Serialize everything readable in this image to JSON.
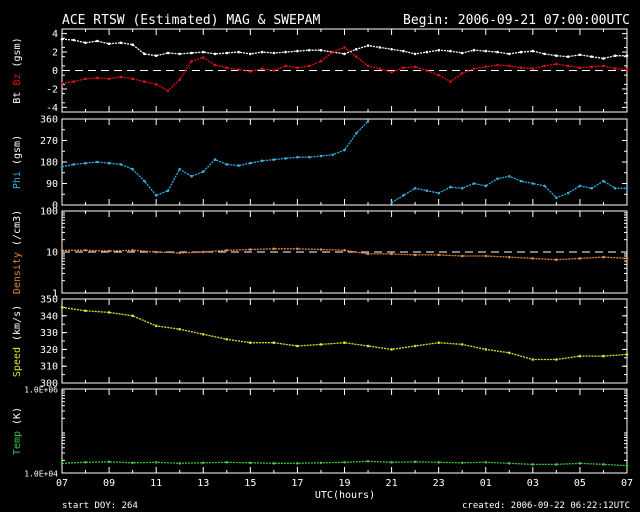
{
  "header": {
    "title": "ACE RTSW (Estimated) MAG & SWEPAM",
    "begin": "Begin: 2006-09-21 07:00:00UTC"
  },
  "footer": {
    "start_doy": "start DOY: 264",
    "created": "created: 2006-09-22 06:22:12UTC"
  },
  "colors": {
    "background": "#000000",
    "axes": "#ffffff",
    "bt": "#ffffff",
    "bz": "#e01010",
    "phi": "#30b0e0",
    "density": "#e08840",
    "speed": "#e0e030",
    "temp": "#40c040"
  },
  "chart_data": {
    "type": "line",
    "xlabel": "UTC(hours)",
    "xlim_hours": [
      0,
      24
    ],
    "x_tick_labels": [
      "07",
      "09",
      "11",
      "13",
      "15",
      "17",
      "19",
      "21",
      "23",
      "01",
      "03",
      "05",
      "07"
    ],
    "panels": [
      {
        "id": "mag",
        "ylabel_parts": [
          {
            "text": "Bt",
            "color_key": "bt"
          },
          {
            "text": " Bz",
            "color_key": "bz"
          },
          {
            "text": " (gsm)",
            "color_key": "axes"
          }
        ],
        "scale": "linear",
        "ylim": [
          -4.5,
          4.5
        ],
        "y_ticks": [
          4,
          2,
          0,
          -2,
          -4
        ],
        "y_tick_labels": [
          "4",
          "2",
          "0",
          "-2",
          "-4"
        ],
        "dashed_ref": 0,
        "series": [
          {
            "name": "Bt",
            "color_key": "bt",
            "x": [
              0,
              0.5,
              1,
              1.5,
              2,
              2.5,
              3,
              3.5,
              4,
              4.5,
              5,
              5.5,
              6,
              6.5,
              7,
              7.5,
              8,
              8.5,
              9,
              9.5,
              10,
              10.5,
              11,
              11.5,
              12,
              12.5,
              13,
              13.5,
              14,
              14.5,
              15,
              15.5,
              16,
              16.5,
              17,
              17.5,
              18,
              18.5,
              19,
              19.5,
              20,
              20.5,
              21,
              21.5,
              22,
              22.5,
              23,
              23.5,
              24
            ],
            "y": [
              3.4,
              3.3,
              3.0,
              3.2,
              2.9,
              3.0,
              2.8,
              1.8,
              1.6,
              1.9,
              1.8,
              1.9,
              2.0,
              1.8,
              1.9,
              2.0,
              1.8,
              2.0,
              1.9,
              2.0,
              2.1,
              2.2,
              2.2,
              2.0,
              1.8,
              2.3,
              2.7,
              2.5,
              2.3,
              2.1,
              1.8,
              2.0,
              2.2,
              2.1,
              1.9,
              2.2,
              2.1,
              2.0,
              1.8,
              2.0,
              2.1,
              1.8,
              1.6,
              1.5,
              1.7,
              1.5,
              1.3,
              1.6,
              1.6
            ]
          },
          {
            "name": "Bz",
            "color_key": "bz",
            "x": [
              0,
              0.5,
              1,
              1.5,
              2,
              2.5,
              3,
              3.5,
              4,
              4.5,
              5,
              5.5,
              6,
              6.5,
              7,
              7.5,
              8,
              8.5,
              9,
              9.5,
              10,
              10.5,
              11,
              11.5,
              12,
              12.5,
              13,
              13.5,
              14,
              14.5,
              15,
              15.5,
              16,
              16.5,
              17,
              17.5,
              18,
              18.5,
              19,
              19.5,
              20,
              20.5,
              21,
              21.5,
              22,
              22.5,
              23,
              23.5,
              24
            ],
            "y": [
              -1.4,
              -1.2,
              -0.9,
              -0.8,
              -0.9,
              -0.7,
              -0.9,
              -1.2,
              -1.5,
              -2.2,
              -1.0,
              1.0,
              1.4,
              0.6,
              0.3,
              0.1,
              -0.1,
              0.2,
              0.0,
              0.5,
              0.3,
              0.5,
              1.0,
              2.0,
              2.5,
              1.5,
              0.5,
              0.2,
              -0.2,
              0.3,
              0.4,
              0.0,
              -0.5,
              -1.2,
              -0.3,
              0.2,
              0.4,
              0.6,
              0.5,
              0.3,
              0.2,
              0.5,
              0.7,
              0.5,
              0.3,
              0.4,
              0.5,
              0.2,
              0.1
            ]
          }
        ]
      },
      {
        "id": "phi",
        "ylabel_parts": [
          {
            "text": "Phi",
            "color_key": "phi"
          },
          {
            "text": " (gsm)",
            "color_key": "axes"
          }
        ],
        "scale": "linear",
        "ylim": [
          0,
          360
        ],
        "y_ticks": [
          360,
          270,
          180,
          90,
          0
        ],
        "y_tick_labels": [
          "360",
          "270",
          "180",
          "90",
          "0"
        ],
        "series": [
          {
            "name": "Phi",
            "color_key": "phi",
            "x": [
              0,
              0.5,
              1,
              1.5,
              2,
              2.5,
              3,
              3.5,
              4,
              4.5,
              5,
              5.5,
              6,
              6.5,
              7,
              7.5,
              8,
              8.5,
              9,
              9.5,
              10,
              10.5,
              11,
              11.5,
              12,
              12.5,
              13,
              13.5,
              14,
              14.5,
              15,
              15.5,
              16,
              16.5,
              17,
              17.5,
              18,
              18.5,
              19,
              19.5,
              20,
              20.5,
              21,
              21.5,
              22,
              22.5,
              23,
              23.5,
              24
            ],
            "y": [
              160,
              170,
              175,
              180,
              175,
              170,
              150,
              100,
              40,
              60,
              150,
              120,
              140,
              190,
              170,
              165,
              175,
              185,
              190,
              195,
              200,
              200,
              205,
              210,
              230,
              300,
              350,
              null,
              10,
              40,
              70,
              60,
              50,
              75,
              70,
              90,
              80,
              110,
              120,
              100,
              90,
              80,
              30,
              50,
              80,
              70,
              100,
              70,
              70
            ]
          }
        ]
      },
      {
        "id": "density",
        "ylabel_parts": [
          {
            "text": "Density",
            "color_key": "density"
          },
          {
            "text": " (/cm3)",
            "color_key": "axes"
          }
        ],
        "scale": "log",
        "ylim": [
          1,
          100
        ],
        "y_ticks": [
          100,
          10,
          1
        ],
        "y_tick_labels": [
          "100",
          "10",
          "1"
        ],
        "dashed_ref": 10,
        "series": [
          {
            "name": "Density",
            "color_key": "density",
            "x": [
              0,
              1,
              2,
              3,
              4,
              5,
              6,
              7,
              8,
              9,
              10,
              11,
              12,
              13,
              14,
              15,
              16,
              17,
              18,
              19,
              20,
              21,
              22,
              23,
              24
            ],
            "y": [
              11,
              11,
              10.5,
              11,
              10,
              9.5,
              10,
              11,
              11.5,
              12,
              12,
              11.5,
              11,
              9,
              9,
              8.5,
              8.5,
              8,
              8,
              7.5,
              7,
              6.5,
              7,
              7.5,
              7
            ]
          }
        ]
      },
      {
        "id": "speed",
        "ylabel_parts": [
          {
            "text": "Speed",
            "color_key": "speed"
          },
          {
            "text": " (km/s)",
            "color_key": "axes"
          }
        ],
        "scale": "linear",
        "ylim": [
          300,
          350
        ],
        "y_ticks": [
          350,
          340,
          330,
          320,
          310,
          300
        ],
        "y_tick_labels": [
          "350",
          "340",
          "330",
          "320",
          "310",
          "300"
        ],
        "series": [
          {
            "name": "Speed",
            "color_key": "speed",
            "x": [
              0,
              1,
              2,
              3,
              4,
              5,
              6,
              7,
              8,
              9,
              10,
              11,
              12,
              13,
              14,
              15,
              16,
              17,
              18,
              19,
              20,
              21,
              22,
              23,
              24
            ],
            "y": [
              345,
              343,
              342,
              340,
              334,
              332,
              329,
              326,
              324,
              324,
              322,
              323,
              324,
              322,
              320,
              322,
              324,
              323,
              320,
              318,
              314,
              314,
              316,
              316,
              317
            ]
          }
        ]
      },
      {
        "id": "temp",
        "ylabel_parts": [
          {
            "text": "Temp",
            "color_key": "temp"
          },
          {
            "text": " (K)",
            "color_key": "axes"
          }
        ],
        "scale": "log",
        "ylim": [
          10000,
          1000000
        ],
        "y_ticks": [
          1000000,
          10000
        ],
        "y_tick_labels": [
          "1.0E+06",
          "1.0E+04"
        ],
        "series": [
          {
            "name": "Temp",
            "color_key": "temp",
            "x": [
              0,
              1,
              2,
              3,
              4,
              5,
              6,
              7,
              8,
              9,
              10,
              11,
              12,
              13,
              14,
              15,
              16,
              17,
              18,
              19,
              20,
              21,
              22,
              23,
              24
            ],
            "y": [
              17000,
              18000,
              18500,
              17500,
              18000,
              17000,
              17500,
              18000,
              17500,
              17000,
              17000,
              17500,
              18000,
              19000,
              18000,
              18500,
              18000,
              17500,
              18000,
              17000,
              16000,
              16000,
              17000,
              16000,
              15000
            ]
          }
        ]
      }
    ]
  }
}
